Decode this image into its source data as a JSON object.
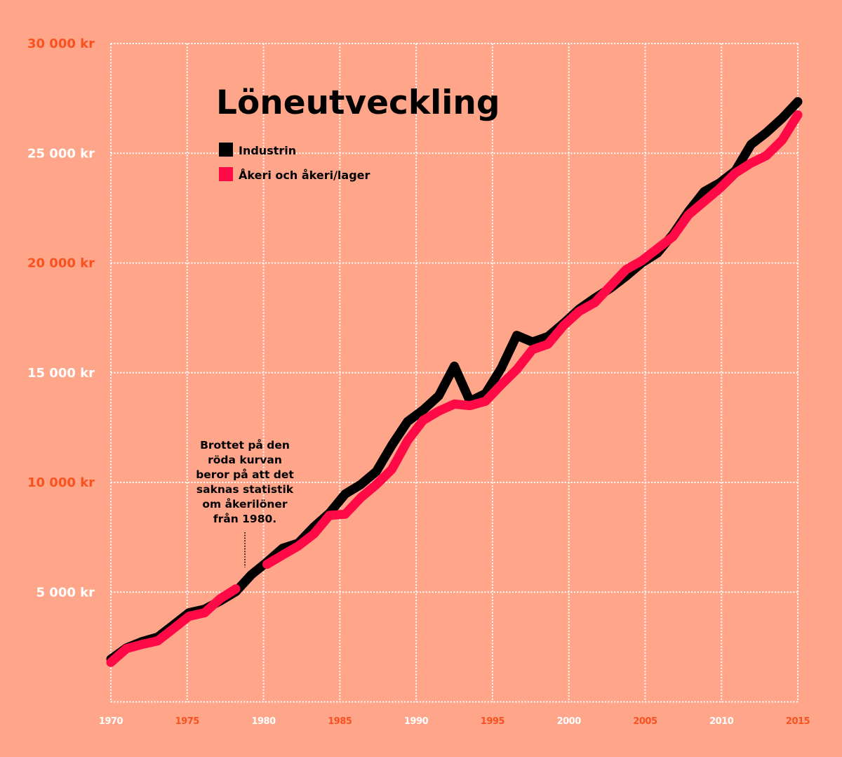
{
  "colors": {
    "background": "#ffa58a",
    "grid": "#ffffff",
    "tick_orange": "#f9521f",
    "tick_white": "#ffffff",
    "industrin": "#000000",
    "akeri": "#ff0a47"
  },
  "chart_data": {
    "type": "line",
    "title": "Löneutveckling",
    "xlabel": "",
    "ylabel": "",
    "xlim": [
      1970,
      2015
    ],
    "ylim": [
      0,
      30000
    ],
    "grid": true,
    "legend_position": "top-left",
    "x_ticks": [
      "1970",
      "1975",
      "1980",
      "1985",
      "1990",
      "1995",
      "2000",
      "2005",
      "2010",
      "2015"
    ],
    "x_tick_values": [
      1970,
      1975,
      1980,
      1985,
      1990,
      1995,
      2000,
      2005,
      2010,
      2015
    ],
    "y_ticks": [
      "5 000 kr",
      "10 000 kr",
      "15 000 kr",
      "20 000 kr",
      "25 000 kr",
      "30 000 kr"
    ],
    "y_tick_values": [
      5000,
      10000,
      15000,
      20000,
      25000,
      30000
    ],
    "x": [
      1970,
      1971,
      1972,
      1973,
      1974,
      1975,
      1976,
      1977,
      1978,
      1979,
      1980,
      1981,
      1982,
      1983,
      1984,
      1985,
      1986,
      1987,
      1988,
      1989,
      1990,
      1991,
      1992,
      1993,
      1994,
      1995,
      1996,
      1997,
      1998,
      1999,
      2000,
      2001,
      2002,
      2003,
      2004,
      2005,
      2006,
      2007,
      2008,
      2009,
      2010,
      2011,
      2012,
      2013,
      2014
    ],
    "series": [
      {
        "name": "Industrin",
        "color": "#000000",
        "values": [
          1950,
          2460,
          2750,
          2950,
          3500,
          4060,
          4220,
          4600,
          5020,
          5800,
          6370,
          7000,
          7230,
          7970,
          8600,
          9470,
          9900,
          10500,
          11700,
          12770,
          13300,
          13950,
          15300,
          13700,
          14050,
          15200,
          16700,
          16400,
          16650,
          17250,
          17900,
          18400,
          18850,
          19400,
          20000,
          20450,
          21300,
          22350,
          23250,
          23650,
          24200,
          25400,
          25950,
          26600,
          27350
        ]
      },
      {
        "name": "Åkeri och åkeri/lager",
        "color": "#ff0a47",
        "values": [
          1800,
          2430,
          2620,
          2780,
          3330,
          3900,
          4060,
          4700,
          5150,
          null,
          6270,
          6690,
          7100,
          7650,
          8500,
          8550,
          9300,
          9900,
          10600,
          11900,
          12830,
          13250,
          13570,
          13500,
          13700,
          14450,
          15150,
          16050,
          16300,
          17150,
          17800,
          18200,
          18950,
          19700,
          20100,
          20650,
          21200,
          22200,
          22800,
          23400,
          24100,
          24550,
          24900,
          25600,
          26750
        ]
      }
    ],
    "annotation": {
      "lines": [
        "Brottet på den",
        "röda kurvan",
        "beror på att det",
        "saknas statistik",
        "om åkerilöner",
        "från 1980."
      ],
      "points_to_year": 1979
    }
  }
}
